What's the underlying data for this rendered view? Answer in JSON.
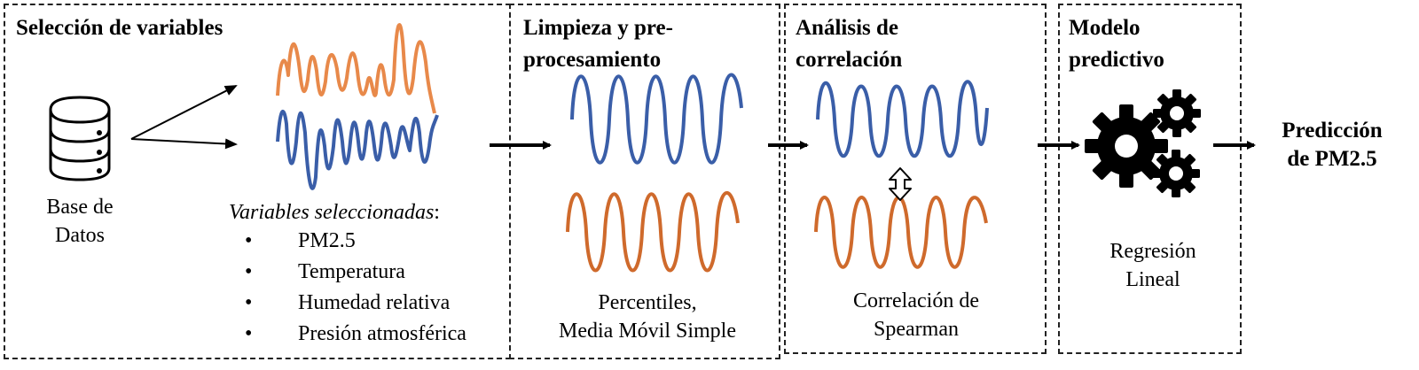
{
  "panels": {
    "selection": {
      "title": "Selección de variables",
      "database_label_line1": "Base de",
      "database_label_line2": "Datos",
      "variables_heading": "Variables seleccionadas",
      "variables_heading_suffix": ":",
      "bullet": "•",
      "variables": [
        "PM2.5",
        "Temperatura",
        "Humedad relativa",
        "Presión atmosférica"
      ]
    },
    "cleaning": {
      "title_line1": "Limpieza y pre-",
      "title_line2": "procesamiento",
      "method_line1": "Percentiles,",
      "method_line2": "Media Móvil Simple"
    },
    "correlation": {
      "title_line1": "Análisis de",
      "title_line2": "correlación",
      "method_line1": "Correlación de",
      "method_line2": "Spearman"
    },
    "model": {
      "title_line1": "Modelo",
      "title_line2": "predictivo",
      "method_line1": "Regresión",
      "method_line2": "Lineal"
    }
  },
  "output": {
    "line1": "Predicción",
    "line2": "de PM2.5"
  },
  "icons": {
    "database": "database-icon",
    "gears": "gears-icon",
    "double_arrow": "double-arrow-icon"
  },
  "colors": {
    "blue_wave": "#3a5ea8",
    "orange_wave": "#e8894a",
    "rust_wave": "#cf6a2c",
    "stroke": "#000000"
  }
}
